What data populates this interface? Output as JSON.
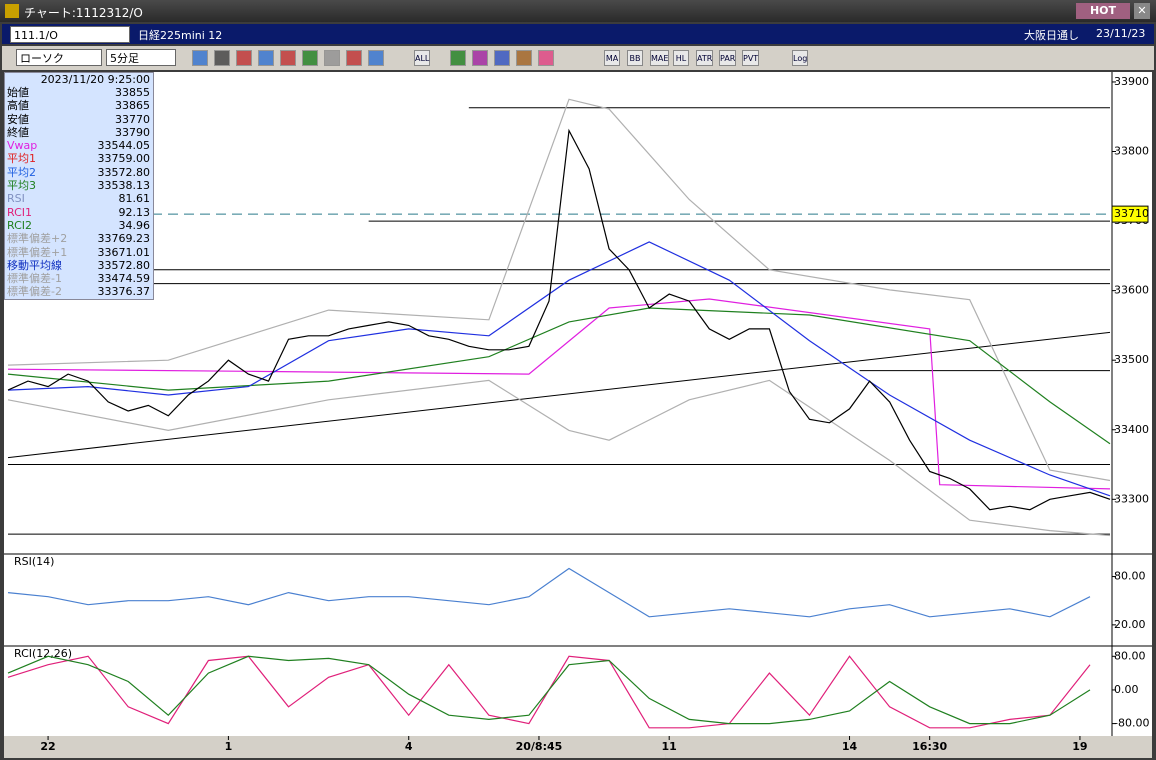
{
  "window": {
    "title": "チャート:1112312/O",
    "hot": "HOT",
    "close": "✕"
  },
  "header": {
    "symbol": "111.1/O",
    "name": "日経225mini 12",
    "market": "大阪日通し",
    "date": "23/11/23"
  },
  "toolbar": {
    "chart_type": "ローソク",
    "period": "5分足",
    "buttons": [
      "ALL",
      "MA",
      "BB",
      "MAE",
      "HL",
      "ATR",
      "PAR",
      "PVT",
      "Log"
    ]
  },
  "info": {
    "datetime": "2023/11/20  9:25:00",
    "rows": [
      {
        "label": "始値",
        "value": "33855",
        "color": "#000000"
      },
      {
        "label": "高値",
        "value": "33865",
        "color": "#000000"
      },
      {
        "label": "安値",
        "value": "33770",
        "color": "#000000"
      },
      {
        "label": "終値",
        "value": "33790",
        "color": "#000000"
      },
      {
        "label": "Vwap",
        "value": "33544.05",
        "color": "#e020e0"
      },
      {
        "label": "平均1",
        "value": "33759.00",
        "color": "#e02020"
      },
      {
        "label": "平均2",
        "value": "33572.80",
        "color": "#2060e0"
      },
      {
        "label": "平均3",
        "value": "33538.13",
        "color": "#208020"
      },
      {
        "label": "RSI",
        "value": "81.61",
        "color": "#8090c0"
      },
      {
        "label": "RCI1",
        "value": "92.13",
        "color": "#e0207a"
      },
      {
        "label": "RCI2",
        "value": "34.96",
        "color": "#208020"
      },
      {
        "label": "標準偏差+2",
        "value": "33769.23",
        "color": "#a0a0a0"
      },
      {
        "label": "標準偏差+1",
        "value": "33671.01",
        "color": "#a0a0a0"
      },
      {
        "label": "移動平均線",
        "value": "33572.80",
        "color": "#1030c0"
      },
      {
        "label": "標準偏差-1",
        "value": "33474.59",
        "color": "#a0a0a0"
      },
      {
        "label": "標準偏差-2",
        "value": "33376.37",
        "color": "#a0a0a0"
      }
    ]
  },
  "chart_data": [
    {
      "type": "line",
      "xlim": [
        0,
        110
      ],
      "ylim": [
        33230,
        33910
      ],
      "yticks": [
        33300,
        33400,
        33500,
        33600,
        33700,
        33800,
        33900
      ],
      "xticks": [
        {
          "value": 4,
          "label": "22"
        },
        {
          "value": 22,
          "label": "1"
        },
        {
          "value": 40,
          "label": "4"
        },
        {
          "value": 53,
          "label": "20/8:45"
        },
        {
          "value": 66,
          "label": "11"
        },
        {
          "value": 84,
          "label": "14"
        },
        {
          "value": 92,
          "label": "16:30"
        },
        {
          "value": 107,
          "label": "19"
        }
      ],
      "current": 33710,
      "current_color": "#ffff00",
      "hlines": [
        {
          "value": 33863,
          "from": 46
        },
        {
          "value": 33700,
          "from": 36
        },
        {
          "value": 33630,
          "from": 0
        },
        {
          "value": 33610,
          "from": 0
        },
        {
          "value": 33485,
          "from": 85
        },
        {
          "value": 33350,
          "from": 0
        },
        {
          "value": 33250,
          "from": 0
        }
      ],
      "trendline": {
        "x": [
          0,
          110
        ],
        "values": [
          33360,
          33540
        ]
      },
      "series": [
        {
          "color": "#b0b0b0",
          "x": [
            0,
            16,
            32,
            48,
            56,
            60,
            68,
            76,
            88,
            96,
            104,
            110
          ],
          "values": [
            33493,
            33500,
            33572,
            33558,
            33875,
            33861,
            33731,
            33630,
            33601,
            33587,
            33342,
            33327
          ]
        },
        {
          "color": "#b0b0b0",
          "x": [
            0,
            16,
            32,
            48,
            56,
            60,
            68,
            76,
            88,
            96,
            104,
            110
          ],
          "values": [
            33443,
            33399,
            33443,
            33471,
            33399,
            33385,
            33443,
            33471,
            33356,
            33270,
            33255,
            33248
          ]
        },
        {
          "color": "#e020e0",
          "x": [
            0,
            24,
            52,
            60,
            70,
            92,
            93,
            110
          ],
          "values": [
            33487,
            33484,
            33480,
            33575,
            33588,
            33545,
            33321,
            33315
          ]
        },
        {
          "color": "#208020",
          "x": [
            0,
            16,
            32,
            48,
            56,
            64,
            80,
            96,
            104,
            110
          ],
          "values": [
            33480,
            33457,
            33470,
            33505,
            33555,
            33575,
            33565,
            33528,
            33440,
            33380
          ]
        },
        {
          "color": "#2030e0",
          "x": [
            0,
            8,
            16,
            24,
            32,
            40,
            48,
            56,
            64,
            72,
            80,
            88,
            96,
            104,
            110
          ],
          "values": [
            33457,
            33462,
            33450,
            33462,
            33528,
            33545,
            33535,
            33615,
            33670,
            33615,
            33528,
            33450,
            33385,
            33335,
            33305
          ]
        },
        {
          "color": "#000000",
          "x": [
            0,
            2,
            4,
            6,
            8,
            10,
            12,
            14,
            16,
            18,
            20,
            22,
            24,
            26,
            28,
            30,
            32,
            34,
            36,
            38,
            40,
            42,
            44,
            46,
            48,
            50,
            52,
            54,
            56,
            58,
            60,
            62,
            64,
            66,
            68,
            70,
            72,
            74,
            76,
            78,
            80,
            82,
            84,
            86,
            88,
            90,
            92,
            94,
            96,
            98,
            100,
            102,
            104,
            106,
            108,
            110
          ],
          "values": [
            33457,
            33470,
            33462,
            33480,
            33470,
            33440,
            33427,
            33435,
            33420,
            33450,
            33470,
            33500,
            33480,
            33470,
            33530,
            33535,
            33535,
            33545,
            33550,
            33555,
            33550,
            33535,
            33530,
            33520,
            33515,
            33515,
            33520,
            33585,
            33830,
            33775,
            33660,
            33630,
            33575,
            33595,
            33585,
            33545,
            33530,
            33545,
            33545,
            33455,
            33415,
            33410,
            33430,
            33470,
            33440,
            33385,
            33340,
            33330,
            33315,
            33285,
            33290,
            33285,
            33300,
            33305,
            33310,
            33300
          ]
        }
      ]
    },
    {
      "type": "line",
      "title": "RSI(14)",
      "xlim": [
        0,
        110
      ],
      "ylim": [
        -5,
        103
      ],
      "yticks": [
        {
          "value": 20,
          "label": "20.00"
        },
        {
          "value": 80,
          "label": "80.00"
        }
      ],
      "series": [
        {
          "color": "#4a80d0",
          "x": [
            0,
            4,
            8,
            12,
            16,
            20,
            24,
            28,
            32,
            36,
            40,
            44,
            48,
            52,
            56,
            60,
            64,
            68,
            72,
            76,
            80,
            84,
            88,
            92,
            96,
            100,
            104,
            108
          ],
          "values": [
            60,
            55,
            45,
            50,
            50,
            55,
            45,
            60,
            50,
            55,
            55,
            50,
            45,
            55,
            90,
            60,
            30,
            35,
            40,
            35,
            30,
            40,
            45,
            30,
            35,
            40,
            30,
            55
          ]
        }
      ]
    },
    {
      "type": "line",
      "title": "RCI(12,26)",
      "xlim": [
        0,
        110
      ],
      "ylim": [
        -100,
        95
      ],
      "yticks": [
        {
          "value": -80,
          "label": "-80.00"
        },
        {
          "value": 0,
          "label": "0.00"
        },
        {
          "value": 80,
          "label": "80.00"
        }
      ],
      "series": [
        {
          "color": "#e0207a",
          "x": [
            0,
            4,
            8,
            12,
            16,
            20,
            24,
            28,
            32,
            36,
            40,
            44,
            48,
            52,
            56,
            60,
            64,
            68,
            72,
            76,
            80,
            84,
            88,
            92,
            96,
            100,
            104,
            108
          ],
          "values": [
            30,
            60,
            80,
            -40,
            -80,
            70,
            80,
            -40,
            30,
            60,
            -60,
            60,
            -60,
            -80,
            80,
            70,
            -90,
            -90,
            -80,
            40,
            -60,
            80,
            -40,
            -90,
            -90,
            -70,
            -60,
            60
          ]
        },
        {
          "color": "#208020",
          "x": [
            0,
            4,
            8,
            12,
            16,
            20,
            24,
            28,
            32,
            36,
            40,
            44,
            48,
            52,
            56,
            60,
            64,
            68,
            72,
            76,
            80,
            84,
            88,
            92,
            96,
            100,
            104,
            108
          ],
          "values": [
            40,
            80,
            60,
            20,
            -60,
            40,
            80,
            70,
            75,
            60,
            -10,
            -60,
            -70,
            -60,
            60,
            70,
            -20,
            -70,
            -80,
            -80,
            -70,
            -50,
            20,
            -40,
            -80,
            -80,
            -60,
            0
          ]
        }
      ]
    }
  ]
}
